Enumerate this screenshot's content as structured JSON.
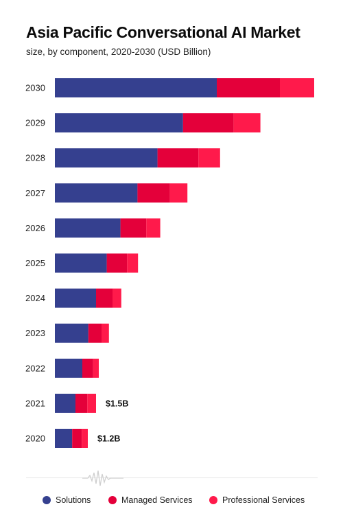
{
  "header": {
    "title": "Asia Pacific Conversational AI Market",
    "subtitle": "size, by component, 2020-2030 (USD Billion)"
  },
  "colors": {
    "solutions": "#35408f",
    "managed": "#e4003a",
    "professional": "#ff1a4b"
  },
  "chart_data": {
    "type": "bar",
    "orientation": "horizontal",
    "stacked": true,
    "title": "Asia Pacific Conversational AI Market",
    "subtitle": "size, by component, 2020-2030 (USD Billion)",
    "categories": [
      "2030",
      "2029",
      "2028",
      "2027",
      "2026",
      "2025",
      "2024",
      "2023",
      "2022",
      "2021",
      "2020"
    ],
    "series": [
      {
        "name": "Solutions",
        "color": "#35408f",
        "values": [
          5.9,
          4.67,
          3.74,
          3.01,
          2.39,
          1.89,
          1.5,
          1.22,
          1.0,
          0.75,
          0.63
        ]
      },
      {
        "name": "Managed Services",
        "color": "#e4003a",
        "values": [
          2.3,
          1.84,
          1.49,
          1.18,
          0.94,
          0.74,
          0.6,
          0.48,
          0.39,
          0.43,
          0.35
        ]
      },
      {
        "name": "Professional Services",
        "color": "#ff1a4b",
        "values": [
          1.25,
          0.98,
          0.79,
          0.64,
          0.51,
          0.4,
          0.32,
          0.27,
          0.21,
          0.32,
          0.22
        ]
      }
    ],
    "data_labels": [
      {
        "category": "2021",
        "text": "$1.5B"
      },
      {
        "category": "2020",
        "text": "$1.2B"
      }
    ],
    "xlim": [
      0,
      9.5
    ],
    "grid": false,
    "legend": "bottom"
  },
  "legend": {
    "items": [
      {
        "label": "Solutions",
        "color": "#35408f"
      },
      {
        "label": "Managed Services",
        "color": "#e4003a"
      },
      {
        "label": "Professional Services",
        "color": "#ff1a4b"
      }
    ]
  }
}
